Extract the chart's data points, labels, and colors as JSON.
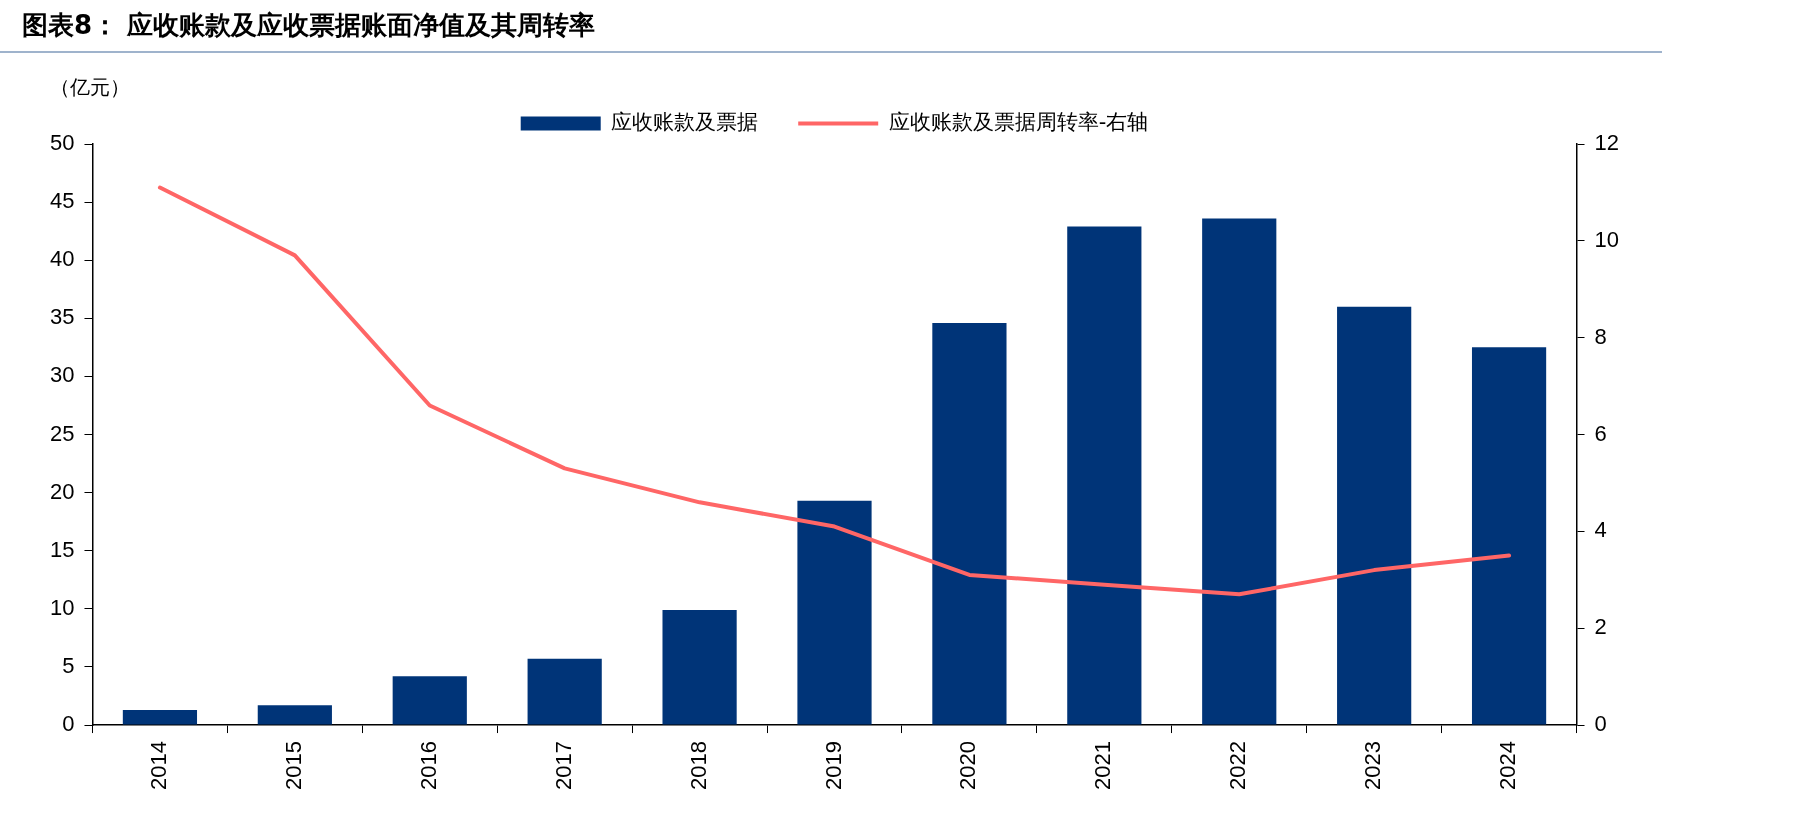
{
  "chart_data": {
    "type": "bar",
    "title": "图表8：  应收账款及应收票据账面净值及其周转率",
    "ylabel": "（亿元）",
    "categories": [
      "2014",
      "2015",
      "2016",
      "2017",
      "2018",
      "2019",
      "2020",
      "2021",
      "2022",
      "2023",
      "2024"
    ],
    "series": [
      {
        "name": "应收账款及票据",
        "color": "#003478",
        "values": [
          1.3,
          1.7,
          4.2,
          5.7,
          9.9,
          19.3,
          34.6,
          42.9,
          43.6,
          36.0,
          32.5
        ]
      },
      {
        "name": "应收账款及票据周转率-右轴",
        "type": "line",
        "axis": "y2",
        "color": "#ff6666",
        "values": [
          11.1,
          9.7,
          6.6,
          5.3,
          4.6,
          4.1,
          3.1,
          2.9,
          2.7,
          3.2,
          3.5
        ]
      }
    ],
    "ylim": [
      0,
      50
    ],
    "yticks": [
      0,
      5,
      10,
      15,
      20,
      25,
      30,
      35,
      40,
      45,
      50
    ],
    "y2lim": [
      0,
      12
    ],
    "y2ticks": [
      0,
      2,
      4,
      6,
      8,
      10,
      12
    ],
    "grid": false,
    "legend": "top",
    "marker": "none",
    "line_style": "solid"
  }
}
